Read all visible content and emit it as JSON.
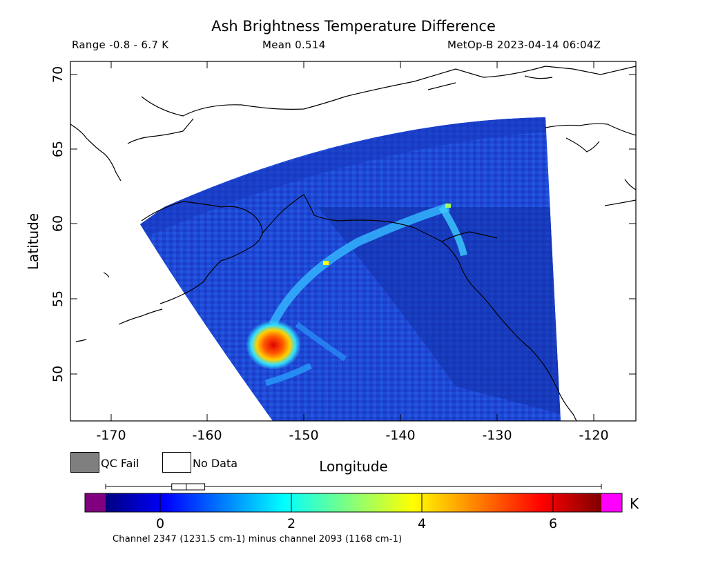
{
  "title": "Ash Brightness Temperature Difference",
  "header": {
    "range": "Range -0.8 - 6.7 K",
    "mean": "Mean 0.514",
    "satellite_time": "MetOp-B 2023-04-14 06:04Z"
  },
  "map": {
    "x_axis_label": "Longitude",
    "y_axis_label": "Latitude",
    "lon_range": [
      -174.5,
      -115.5
    ],
    "lat_range": [
      46.5,
      70.7
    ],
    "lon_ticks": [
      "-170",
      "-160",
      "-150",
      "-140",
      "-130",
      "-120"
    ],
    "lat_ticks": [
      "50",
      "55",
      "60",
      "65",
      "70"
    ]
  },
  "legend": {
    "qc_fail_label": "QC Fail",
    "qc_fail_color": "#7f7f7f",
    "no_data_label": "No Data",
    "no_data_color": "#ffffff"
  },
  "colorbar": {
    "unit": "K",
    "ticks": [
      "0",
      "2",
      "4",
      "6"
    ],
    "range": [
      -0.8,
      6.7
    ],
    "underflow_color": "#800080",
    "overflow_color": "#ff00ff",
    "boxplot": {
      "min": -0.8,
      "q1": 0.2,
      "median": 0.42,
      "q3": 0.7,
      "max": 6.7
    }
  },
  "footnote": "Channel 2347 (1231.5 cm-1) minus channel 2093 (1168 cm-1)"
}
